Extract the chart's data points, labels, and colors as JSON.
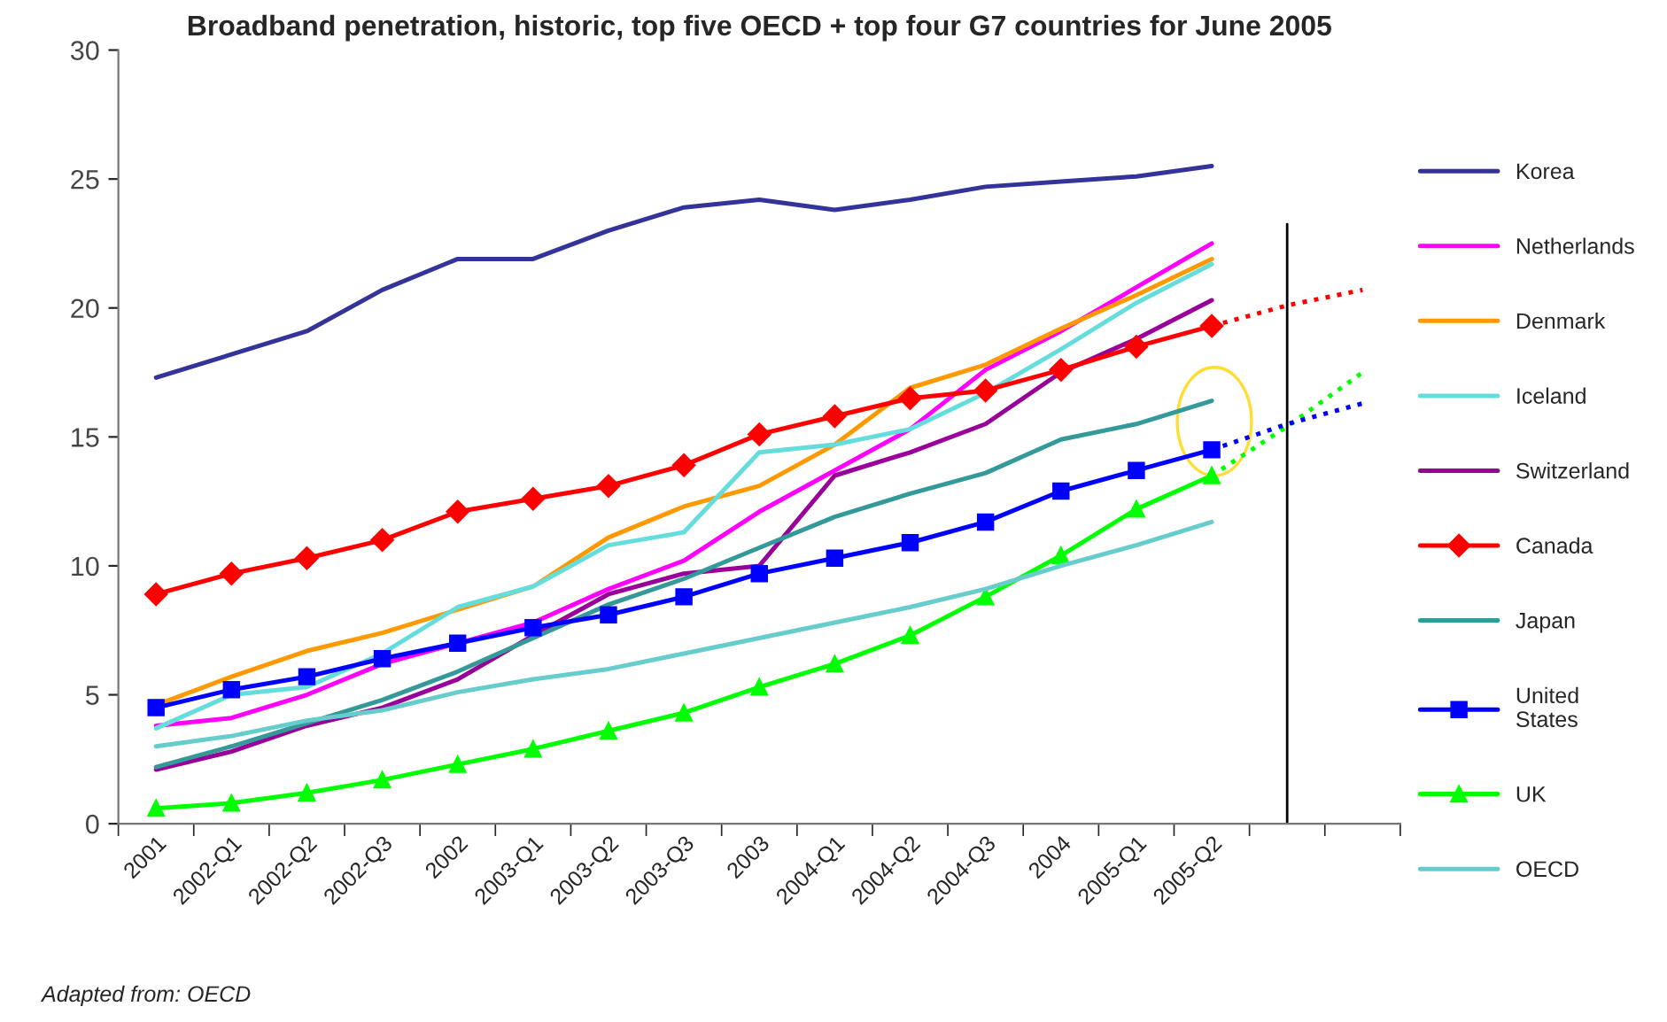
{
  "chart_data": {
    "type": "line",
    "title": "Broadband penetration, historic, top five OECD + top four G7 countries for June 2005",
    "categories": [
      "2001",
      "2002-Q1",
      "2002-Q2",
      "2002-Q3",
      "2002",
      "2003-Q1",
      "2003-Q2",
      "2003-Q3",
      "2003",
      "2004-Q1",
      "2004-Q2",
      "2004-Q3",
      "2004",
      "2005-Q1",
      "2005-Q2",
      null,
      null
    ],
    "series": [
      {
        "name": "Korea",
        "color": "#333399",
        "values": [
          17.3,
          18.2,
          19.1,
          20.7,
          21.9,
          21.9,
          23.0,
          23.9,
          24.2,
          23.8,
          24.2,
          24.7,
          24.9,
          25.1,
          25.5,
          null,
          null
        ]
      },
      {
        "name": "Netherlands",
        "color": "#ff00ff",
        "values": [
          3.8,
          4.1,
          5.0,
          6.2,
          7.0,
          7.8,
          9.1,
          10.2,
          12.1,
          13.7,
          15.3,
          17.6,
          19.1,
          20.8,
          22.5,
          null,
          null
        ]
      },
      {
        "name": "Denmark",
        "color": "#ff9900",
        "values": [
          4.6,
          5.7,
          6.7,
          7.4,
          8.3,
          9.2,
          11.1,
          12.3,
          13.1,
          14.7,
          16.9,
          17.8,
          19.2,
          20.5,
          21.9,
          null,
          null
        ]
      },
      {
        "name": "Iceland",
        "color": "#66dddd",
        "values": [
          3.7,
          5.0,
          5.3,
          6.6,
          8.4,
          9.2,
          10.8,
          11.3,
          14.4,
          14.7,
          15.3,
          16.7,
          18.4,
          20.2,
          21.7,
          null,
          null
        ]
      },
      {
        "name": "Switzerland",
        "color": "#990099",
        "values": [
          2.1,
          2.8,
          3.8,
          4.5,
          5.6,
          7.3,
          8.9,
          9.7,
          10.0,
          13.5,
          14.4,
          15.5,
          17.5,
          18.8,
          20.3,
          null,
          null
        ]
      },
      {
        "name": "Canada",
        "color": "#ff0000",
        "marker": "diamond",
        "values": [
          8.9,
          9.7,
          10.3,
          11.0,
          12.1,
          12.6,
          13.1,
          13.9,
          15.1,
          15.8,
          16.5,
          16.8,
          17.6,
          18.5,
          19.3,
          null,
          null
        ]
      },
      {
        "name": "Japan",
        "color": "#339999",
        "values": [
          2.2,
          3.0,
          3.9,
          4.8,
          5.9,
          7.2,
          8.5,
          9.5,
          10.7,
          11.9,
          12.8,
          13.6,
          14.9,
          15.5,
          16.4,
          null,
          null
        ]
      },
      {
        "name": "United\nStates",
        "color": "#0000ff",
        "marker": "square",
        "values": [
          4.5,
          5.2,
          5.7,
          6.4,
          7.0,
          7.6,
          8.1,
          8.8,
          9.7,
          10.3,
          10.9,
          11.7,
          12.9,
          13.7,
          14.5,
          null,
          null
        ]
      },
      {
        "name": "UK",
        "color": "#00ff00",
        "marker": "triangle",
        "values": [
          0.6,
          0.8,
          1.2,
          1.7,
          2.3,
          2.9,
          3.6,
          4.3,
          5.3,
          6.2,
          7.3,
          8.8,
          10.4,
          12.2,
          13.5,
          null,
          null
        ]
      },
      {
        "name": "OECD",
        "color": "#66cccc",
        "values": [
          3.0,
          3.4,
          4.0,
          4.4,
          5.1,
          5.6,
          6.0,
          6.6,
          7.2,
          7.8,
          8.4,
          9.1,
          10.0,
          10.8,
          11.7,
          null,
          null
        ]
      },
      {
        "color": "#ff0000",
        "line_style": "dotted",
        "values": [
          null,
          null,
          null,
          null,
          null,
          null,
          null,
          null,
          null,
          null,
          null,
          null,
          null,
          null,
          19.3,
          20.1,
          20.7
        ]
      },
      {
        "color": "#00ff00",
        "line_style": "dotted",
        "values": [
          null,
          null,
          null,
          null,
          null,
          null,
          null,
          null,
          null,
          null,
          null,
          null,
          null,
          null,
          13.5,
          15.4,
          17.5
        ]
      },
      {
        "color": "#0000ff",
        "line_style": "dotted",
        "values": [
          null,
          null,
          null,
          null,
          null,
          null,
          null,
          null,
          null,
          null,
          null,
          null,
          null,
          null,
          14.5,
          15.5,
          16.3
        ]
      }
    ],
    "ylim": [
      0,
      30
    ],
    "yticks": [
      0,
      5,
      10,
      15,
      20,
      25,
      30
    ],
    "legend": "right",
    "annotations": [
      "Adapted from: OECD"
    ]
  }
}
